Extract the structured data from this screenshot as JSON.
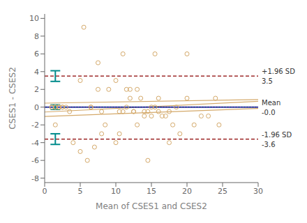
{
  "chart_data": {
    "type": "scatter",
    "xlabel": "Mean of CSES1 and CSES2",
    "ylabel": "CSES1 - CSES2",
    "xlim": [
      0,
      30
    ],
    "ylim": [
      -8.5,
      10.5
    ],
    "xticks": [
      0,
      5,
      10,
      15,
      20,
      25,
      30
    ],
    "yticks": [
      -8,
      -6,
      -4,
      -2,
      0,
      2,
      4,
      6,
      8,
      10
    ],
    "grid": false,
    "series": [
      {
        "type": "scatter",
        "color": "#d4a96a",
        "marker": "open_circle",
        "x": [
          1.0,
          1.5,
          1.5,
          1.5,
          2.0,
          2.0,
          2.5,
          2.5,
          3.0,
          3.5,
          4.0,
          5.0,
          5.5,
          6.0,
          7.0,
          7.5,
          8.0,
          8.5,
          9.0,
          10.0,
          10.5,
          11.0,
          11.5,
          12.0,
          12.5,
          13.0,
          13.5,
          14.0,
          14.5,
          15.0,
          15.5,
          16.0,
          16.5,
          17.0,
          17.5,
          18.0,
          19.0,
          20.0,
          21.0,
          22.0,
          23.0,
          24.0,
          24.5,
          1.0,
          1.5,
          2.0,
          5.0,
          6.5,
          6.5,
          7.5,
          8.0,
          10.0,
          10.5,
          11.0,
          11.5,
          12.0,
          12.5,
          13.0,
          14.0,
          14.5,
          15.0,
          15.5,
          16.0,
          17.5,
          18.5,
          20.0
        ],
        "values": [
          0.0,
          0.0,
          0.0,
          0.0,
          0.0,
          0.0,
          0.0,
          0.0,
          0.0,
          -0.5,
          -4.0,
          -5.0,
          9.0,
          -6.0,
          -4.5,
          5.0,
          -3.0,
          -2.0,
          2.0,
          -4.0,
          -3.0,
          6.0,
          2.0,
          1.0,
          -0.5,
          2.0,
          1.0,
          -0.5,
          -0.5,
          -1.0,
          6.0,
          1.0,
          -1.0,
          -1.0,
          -0.5,
          -2.0,
          -3.0,
          6.0,
          -2.0,
          -1.0,
          -1.0,
          1.0,
          -2.0,
          0.0,
          -2.0,
          0.0,
          3.0,
          0.0,
          0.0,
          2.0,
          -0.5,
          3.0,
          -0.5,
          -0.5,
          0.0,
          2.0,
          -0.5,
          -2.0,
          -1.0,
          -6.0,
          0.0,
          0.0,
          -0.5,
          -4.0,
          0.0,
          1.0
        ]
      },
      {
        "type": "line",
        "color": "#d4a96a",
        "line_style": "solid",
        "x": [
          0,
          30
        ],
        "values": [
          0.45,
          0.85
        ]
      },
      {
        "type": "line",
        "color": "#d4a96a",
        "line_style": "solid",
        "x": [
          0,
          30
        ],
        "values": [
          -0.55,
          0.65
        ]
      },
      {
        "type": "line",
        "color": "#d4a96a",
        "line_style": "solid",
        "x": [
          0,
          30
        ],
        "values": [
          -1.05,
          -0.15
        ]
      }
    ],
    "hlines": [
      {
        "y": 3.5,
        "color": "#8b0000",
        "line_style": "dashed",
        "labels": [
          "+1.96 SD",
          "3.5"
        ]
      },
      {
        "y": -3.6,
        "color": "#8b0000",
        "line_style": "dashed",
        "labels": [
          "-1.96 SD",
          "-3.6"
        ]
      },
      {
        "y": 0.0,
        "color": "#1a3f8f",
        "line_style": "solid",
        "labels": [
          "Mean",
          "-0.0"
        ]
      },
      {
        "y": 0.0,
        "color": "#9b30d0",
        "line_style": "dotted",
        "labels": []
      }
    ],
    "error_bars": {
      "color": "#008b8b",
      "x": [
        1.5,
        1.5,
        1.5
      ],
      "y": [
        3.5,
        -3.6,
        0.0
      ],
      "errors": [
        0.6,
        0.6,
        0.25
      ]
    }
  }
}
